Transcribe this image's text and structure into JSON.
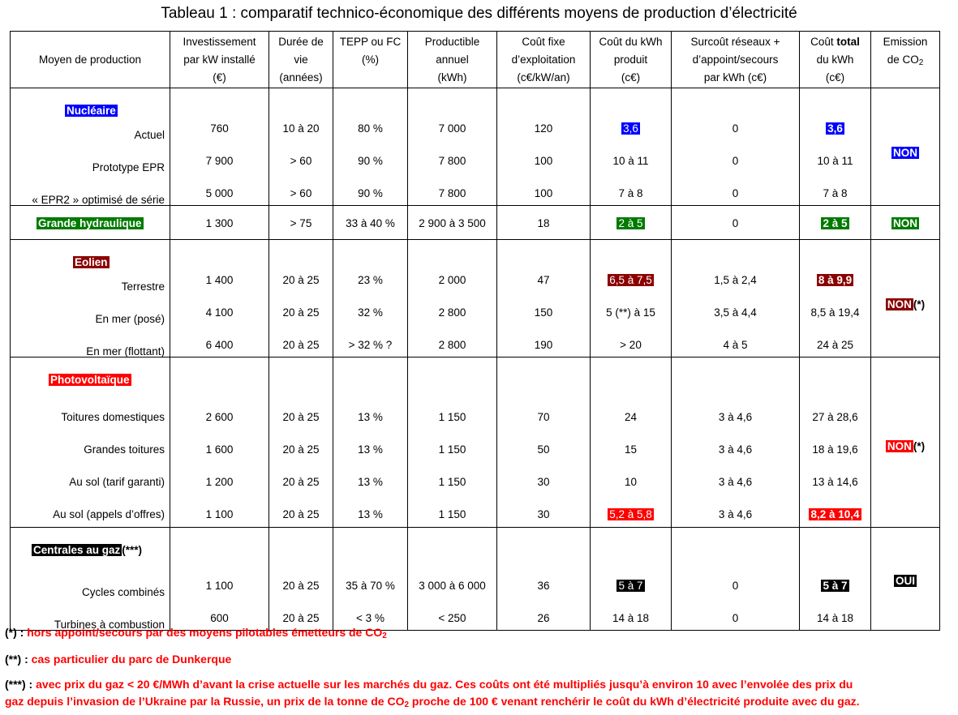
{
  "title": "Tableau 1 : comparatif technico-économique des différents moyens de production d’électricité",
  "headers": {
    "moyen": "Moyen de production",
    "invest": [
      "Investissement",
      "par kW installé",
      "(€)"
    ],
    "duree": [
      "Durée de",
      "vie",
      "(années)"
    ],
    "tepp": [
      "TEPP ou FC",
      "(%)"
    ],
    "productible": [
      "Productible",
      "annuel",
      "(kWh)"
    ],
    "cout_fixe": [
      "Coût fixe",
      "d’exploitation",
      "(c€/kW/an)"
    ],
    "cout_kwh": [
      "Coût du kWh",
      "produit",
      "(c€)"
    ],
    "surcout": [
      "Surcoût réseaux +",
      "d’appoint/secours",
      "par kWh (c€)"
    ],
    "cout_total_pre": "Coût ",
    "cout_total_bold": "total",
    "cout_total_rest": [
      "du kWh",
      "(c€)"
    ],
    "emission": [
      "Emission",
      "de CO",
      "2"
    ]
  },
  "colors": {
    "nucleaire": "#0000ff",
    "hydraulique": "#007a00",
    "eolien": "#8b0000",
    "photovoltaique": "#ff0000",
    "gaz": "#000000",
    "notes": "#ff0000"
  },
  "groups": {
    "nucleaire": {
      "name": "Nucléaire",
      "emission": "NON",
      "rows": [
        {
          "label": "Actuel",
          "invest": "760",
          "duree": "10 à 20",
          "tepp": "80 %",
          "prod": "7 000",
          "fixe": "120",
          "kwh": "3,6",
          "surcout": "0",
          "total": "3,6"
        },
        {
          "label": "Prototype EPR",
          "invest": "7 900",
          "duree": "> 60",
          "tepp": "90 %",
          "prod": "7 800",
          "fixe": "100",
          "kwh": "10 à 11",
          "surcout": "0",
          "total": "10 à 11"
        },
        {
          "label": "« EPR2 » optimisé de série",
          "invest": "5 000",
          "duree": "> 60",
          "tepp": "90 %",
          "prod": "7 800",
          "fixe": "100",
          "kwh": "7 à 8",
          "surcout": "0",
          "total": "7 à 8"
        }
      ]
    },
    "hydraulique": {
      "name": "Grande hydraulique",
      "emission": "NON",
      "row": {
        "invest": "1 300",
        "duree": "> 75",
        "tepp": "33 à 40 %",
        "prod": "2 900 à 3 500",
        "fixe": "18",
        "kwh": "2 à 5",
        "surcout": "0",
        "total": "2 à 5"
      }
    },
    "eolien": {
      "name": "Eolien",
      "emission": "NON",
      "emission_note": " (*)",
      "rows": [
        {
          "label": "Terrestre",
          "invest": "1 400",
          "duree": "20 à 25",
          "tepp": "23 %",
          "prod": "2 000",
          "fixe": "47",
          "kwh": "6,5 à 7,5",
          "surcout": "1,5 à 2,4",
          "total": "8 à 9,9"
        },
        {
          "label": "En mer (posé)",
          "invest": "4 100",
          "duree": "20 à 25",
          "tepp": "32 %",
          "prod": "2 800",
          "fixe": "150",
          "kwh": "5 (**) à 15",
          "surcout": "3,5 à 4,4",
          "total": "8,5 à 19,4"
        },
        {
          "label": "En mer (flottant)",
          "invest": "6 400",
          "duree": "20 à 25",
          "tepp": "> 32 % ?",
          "prod": "2 800",
          "fixe": "190",
          "kwh": "> 20",
          "surcout": "4 à 5",
          "total": "24 à 25"
        }
      ]
    },
    "photovoltaique": {
      "name": "Photovoltaïque",
      "emission": "NON",
      "emission_note": " (*)",
      "rows": [
        {
          "label": "Toitures domestiques",
          "invest": "2 600",
          "duree": "20 à 25",
          "tepp": "13 %",
          "prod": "1 150",
          "fixe": "70",
          "kwh": "24",
          "surcout": "3 à 4,6",
          "total": "27 à 28,6"
        },
        {
          "label": "Grandes toitures",
          "invest": "1 600",
          "duree": "20 à 25",
          "tepp": "13 %",
          "prod": "1 150",
          "fixe": "50",
          "kwh": "15",
          "surcout": "3 à 4,6",
          "total": "18 à 19,6"
        },
        {
          "label": "Au sol (tarif garanti)",
          "invest": "1 200",
          "duree": "20 à 25",
          "tepp": "13 %",
          "prod": "1 150",
          "fixe": "30",
          "kwh": "10",
          "surcout": "3 à 4,6",
          "total": "13 à 14,6"
        },
        {
          "label": "Au sol (appels d’offres)",
          "invest": "1 100",
          "duree": "20 à 25",
          "tepp": "13 %",
          "prod": "1 150",
          "fixe": "30",
          "kwh": "5,2 à 5,8",
          "surcout": "3 à 4,6",
          "total": "8,2 à 10,4"
        }
      ]
    },
    "gaz": {
      "name": "Centrales au gaz",
      "name_note": " (***)",
      "emission": "OUI",
      "rows": [
        {
          "label": "Cycles combinés",
          "invest": "1 100",
          "duree": "20 à 25",
          "tepp": "35 à 70 %",
          "prod": "3 000 à 6 000",
          "fixe": "36",
          "kwh": "5 à 7",
          "surcout": "0",
          "total": "5 à 7"
        },
        {
          "label": "Turbines à combustion",
          "invest": "600",
          "duree": "20 à 25",
          "tepp": "< 3 %",
          "prod": "< 250",
          "fixe": "26",
          "kwh": "14 à 18",
          "surcout": "0",
          "total": "14 à 18"
        }
      ]
    }
  },
  "notes": {
    "n1_key": "(*) :",
    "n1_text": " hors appoint/secours par des moyens pilotables émetteurs de CO",
    "n1_sub": "2",
    "n2_key": "(**) :",
    "n2_text": " cas particulier du parc de Dunkerque",
    "n3_key": "(***) :",
    "n3_text_a": " avec prix du gaz < 20 €/MWh d’avant la crise actuelle sur les marchés du gaz. Ces coûts ont été multipliés jusqu’à environ 10 avec l’envolée des prix du",
    "n3_text_b": "gaz depuis l’invasion de l’Ukraine par la Russie, un prix de la tonne de CO",
    "n3_sub": "2",
    "n3_text_c": " proche de 100 € venant renchérir le coût du kWh d’électricité produite avec du gaz."
  }
}
